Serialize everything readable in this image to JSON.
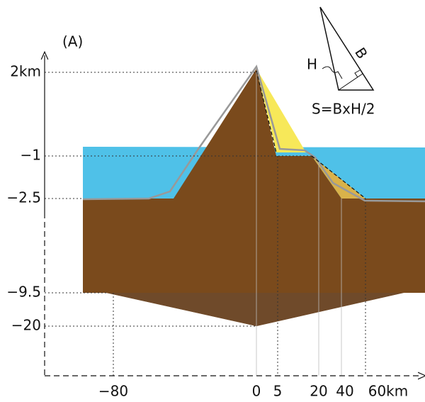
{
  "panel_label": "(A)",
  "y_labels": [
    "2km",
    "−1",
    "−2.5",
    "−9.5",
    "−20"
  ],
  "x_labels": [
    "−80",
    "0",
    "5",
    "20",
    "40",
    "60km"
  ],
  "inset": {
    "height_label": "H",
    "base_label": "B",
    "formula": "S=BxH/2"
  }
}
